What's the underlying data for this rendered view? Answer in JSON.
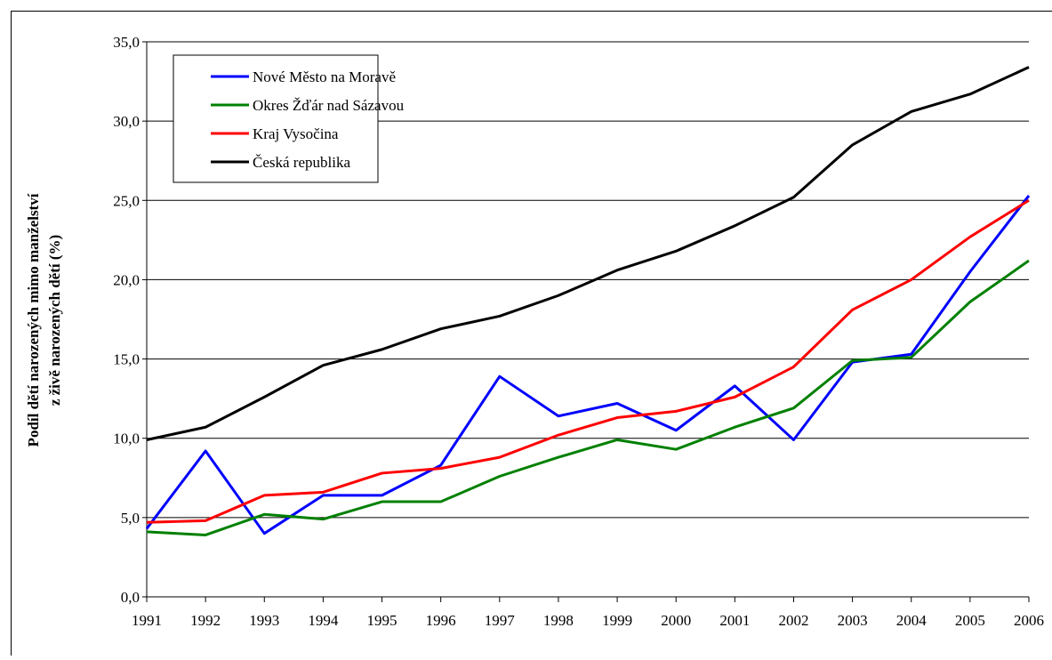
{
  "chart_data": {
    "type": "line",
    "y_label": [
      "Podíl dětí narozených mimo manželství",
      "z živě narozených dětí (%)"
    ],
    "categories": [
      "1991",
      "1992",
      "1993",
      "1994",
      "1995",
      "1996",
      "1997",
      "1998",
      "1999",
      "2000",
      "2001",
      "2002",
      "2003",
      "2004",
      "2005",
      "2006"
    ],
    "series": [
      {
        "name": "Nové Město na Moravě",
        "color": "#0000ff",
        "values": [
          4.3,
          9.2,
          4.0,
          6.4,
          6.4,
          8.3,
          13.9,
          11.4,
          12.2,
          10.5,
          13.3,
          9.9,
          14.8,
          15.3,
          20.5,
          25.3
        ]
      },
      {
        "name": "Okres Žďár nad Sázavou",
        "color": "#008000",
        "values": [
          4.1,
          3.9,
          5.2,
          4.9,
          6.0,
          6.0,
          7.6,
          8.8,
          9.9,
          9.3,
          10.7,
          11.9,
          14.9,
          15.1,
          18.6,
          21.2
        ]
      },
      {
        "name": "Kraj Vysočina",
        "color": "#ff0000",
        "values": [
          4.7,
          4.8,
          6.4,
          6.6,
          7.8,
          8.1,
          8.8,
          10.2,
          11.3,
          11.7,
          12.6,
          14.5,
          18.1,
          20.0,
          22.7,
          25.0
        ]
      },
      {
        "name": "Česká republika",
        "color": "#000000",
        "values": [
          9.9,
          10.7,
          12.6,
          14.6,
          15.6,
          16.9,
          17.7,
          19.0,
          20.6,
          21.8,
          23.4,
          25.2,
          28.5,
          30.6,
          31.7,
          33.4
        ]
      }
    ],
    "ylim": [
      0,
      35
    ],
    "yticks": [
      {
        "value": 0,
        "label": "0,0"
      },
      {
        "value": 5,
        "label": "5,0"
      },
      {
        "value": 10,
        "label": "10,0"
      },
      {
        "value": 15,
        "label": "15,0"
      },
      {
        "value": 20,
        "label": "20,0"
      },
      {
        "value": 25,
        "label": "25,0"
      },
      {
        "value": 30,
        "label": "30,0"
      },
      {
        "value": 35,
        "label": "35,0"
      }
    ],
    "grid": true,
    "legend": "top-left"
  }
}
